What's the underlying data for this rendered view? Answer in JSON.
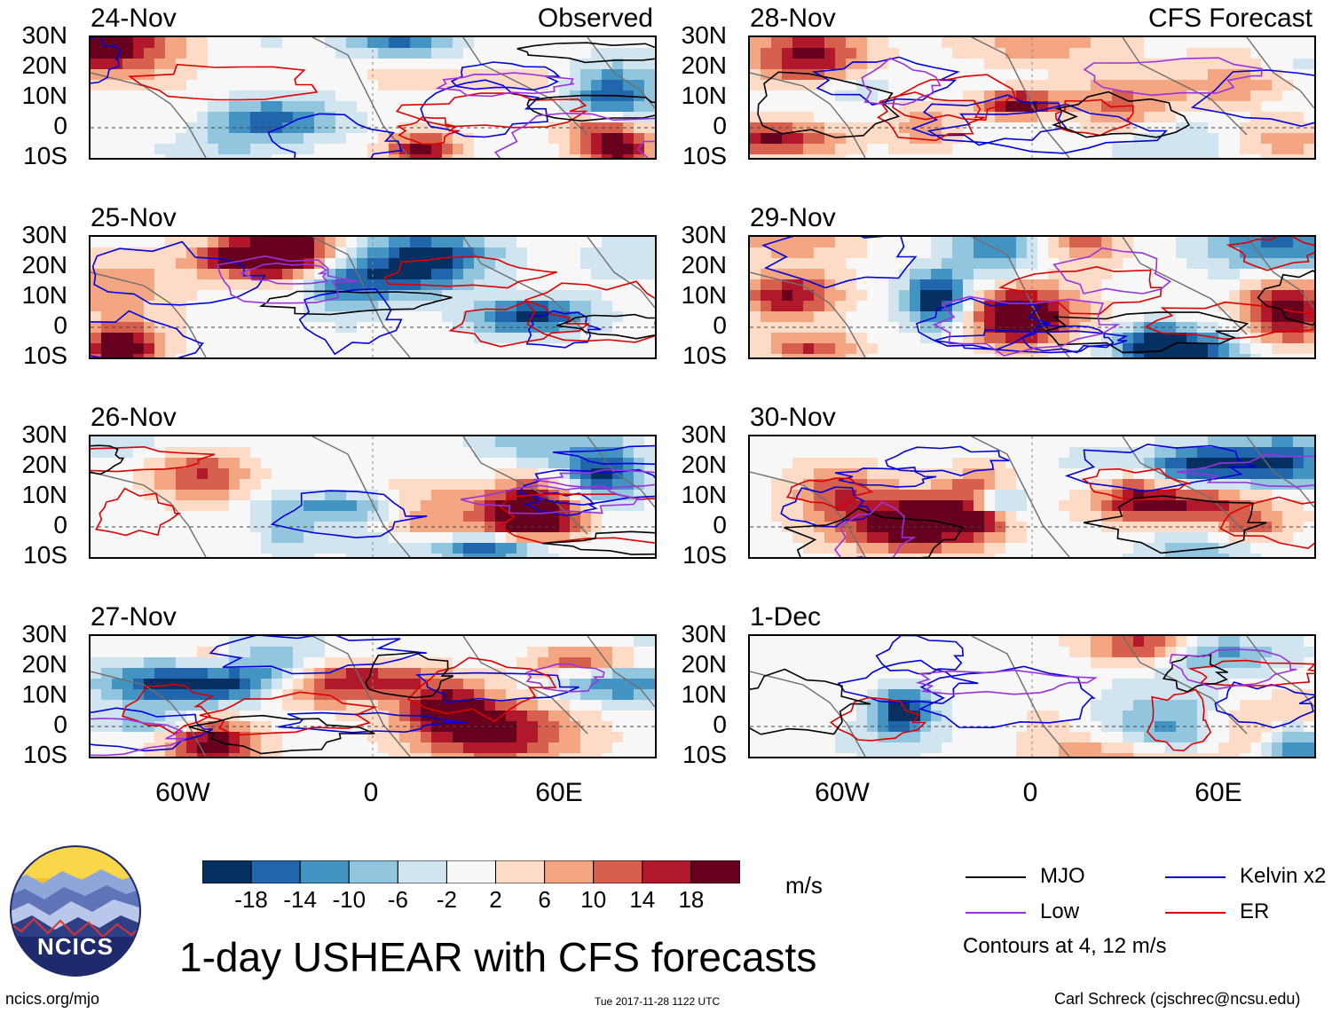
{
  "chart_data": {
    "type": "heatmap",
    "title": "1-day USHEAR with CFS forecasts",
    "units": "m/s",
    "observed_label": "Observed",
    "forecast_label": "CFS Forecast",
    "lat_ticks": [
      "30N",
      "20N",
      "10N",
      "0",
      "10S"
    ],
    "lat_range": [
      -10,
      30
    ],
    "lon_ticks": [
      "60W",
      "0",
      "60E"
    ],
    "lon_range": [
      -90,
      90
    ],
    "panels": [
      {
        "date": "24-Nov",
        "kind": "observed",
        "seed": 3
      },
      {
        "date": "25-Nov",
        "kind": "observed",
        "seed": 7
      },
      {
        "date": "26-Nov",
        "kind": "observed",
        "seed": 11
      },
      {
        "date": "27-Nov",
        "kind": "observed",
        "seed": 17
      },
      {
        "date": "28-Nov",
        "kind": "forecast",
        "seed": 23
      },
      {
        "date": "29-Nov",
        "kind": "forecast",
        "seed": 29
      },
      {
        "date": "30-Nov",
        "kind": "forecast",
        "seed": 31
      },
      {
        "date": "1-Dec",
        "kind": "forecast",
        "seed": 37
      }
    ],
    "colorbar": {
      "levels": [
        "-18",
        "-14",
        "-10",
        "-6",
        "-2",
        "2",
        "6",
        "10",
        "14",
        "18"
      ],
      "colors": [
        "#053061",
        "#2166ac",
        "#4393c3",
        "#92c5de",
        "#d1e5f0",
        "#f7f7f7",
        "#fddbc7",
        "#f4a582",
        "#d6604d",
        "#b2182b",
        "#67001f"
      ]
    },
    "legend": [
      {
        "label": "MJO",
        "color": "#000000"
      },
      {
        "label": "Kelvin x2",
        "color": "#0000dd"
      },
      {
        "label": "Low",
        "color": "#9933dd"
      },
      {
        "label": "ER",
        "color": "#dd0000"
      }
    ],
    "contour_note": "Contours at 4, 12 m/s"
  },
  "footer": {
    "logo_text": "NCICS",
    "website": "ncics.org/mjo",
    "timestamp": "Tue 2017-11-28 1122 UTC",
    "credit": "Carl Schreck (cjschrec@ncsu.edu)"
  }
}
